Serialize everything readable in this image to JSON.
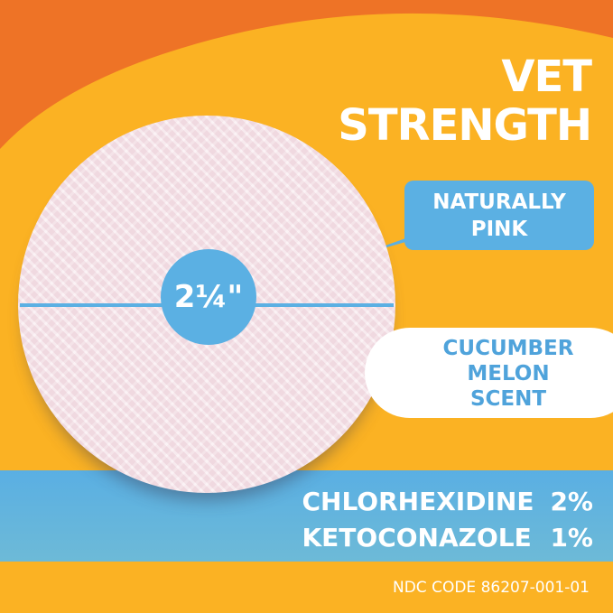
{
  "colors": {
    "orange": "#EE7326",
    "yellow": "#FBB223",
    "blue": "#5BB0E3",
    "pad_pink": "#F6E4EA",
    "white": "#FFFFFF"
  },
  "headline": {
    "line1": "VET",
    "line2": "STRENGTH"
  },
  "size_label": "2¼\"",
  "callout": {
    "line1": "NATURALLY",
    "line2": "PINK"
  },
  "scent": {
    "line1": "CUCUMBER",
    "line2": "MELON",
    "line3": "SCENT"
  },
  "ingredients": [
    {
      "name": "CHLORHEXIDINE",
      "percent": "2%"
    },
    {
      "name": "KETOCONAZOLE",
      "percent": "1%"
    }
  ],
  "ndc": "NDC CODE 86207-001-01"
}
